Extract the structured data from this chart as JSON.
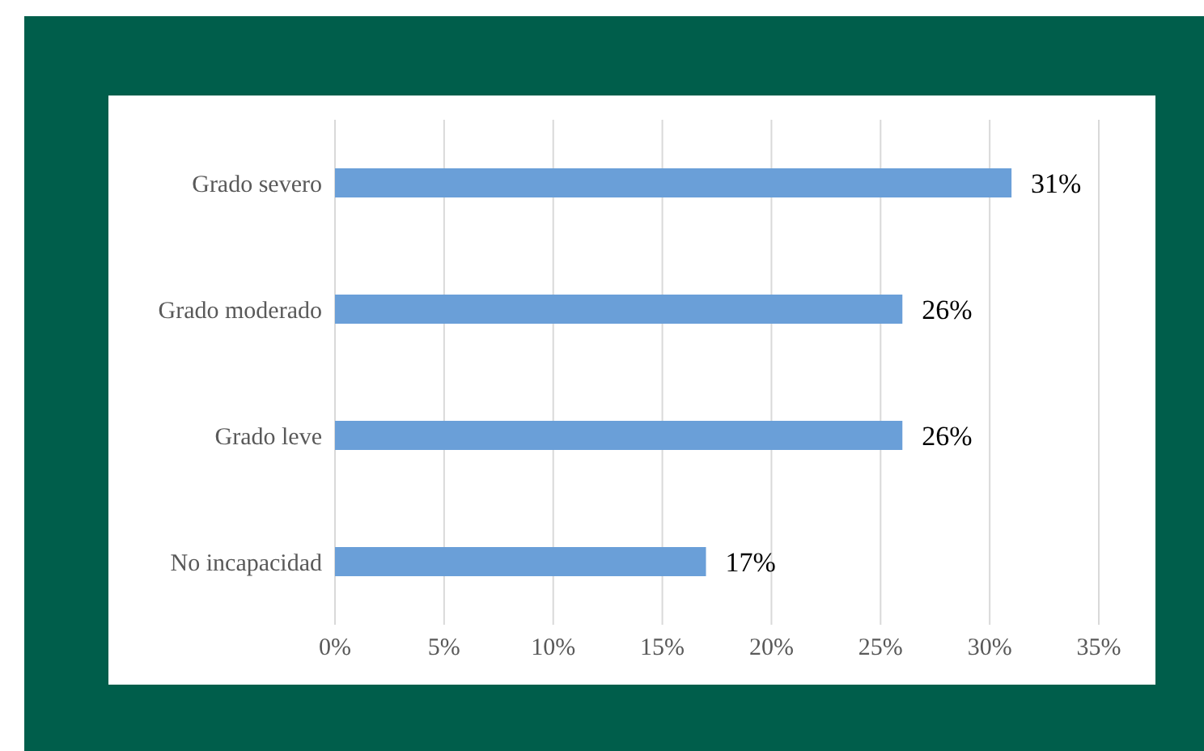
{
  "chart_data": {
    "type": "bar",
    "orientation": "horizontal",
    "categories": [
      "Grado severo",
      "Grado moderado",
      "Grado leve",
      "No incapacidad"
    ],
    "values": [
      31,
      26,
      26,
      17
    ],
    "color": "#6a9fd8",
    "value_labels": [
      "31%",
      "26%",
      "26%",
      "17%"
    ],
    "xlim": [
      0,
      35
    ],
    "xticks": [
      {
        "value": 0,
        "label": "0%"
      },
      {
        "value": 5,
        "label": "5%"
      },
      {
        "value": 10,
        "label": "10%"
      },
      {
        "value": 15,
        "label": "15%"
      },
      {
        "value": 20,
        "label": "20%"
      },
      {
        "value": 25,
        "label": "25%"
      },
      {
        "value": 30,
        "label": "30%"
      },
      {
        "value": 35,
        "label": "35%"
      }
    ],
    "grid": "x",
    "legend": false
  }
}
